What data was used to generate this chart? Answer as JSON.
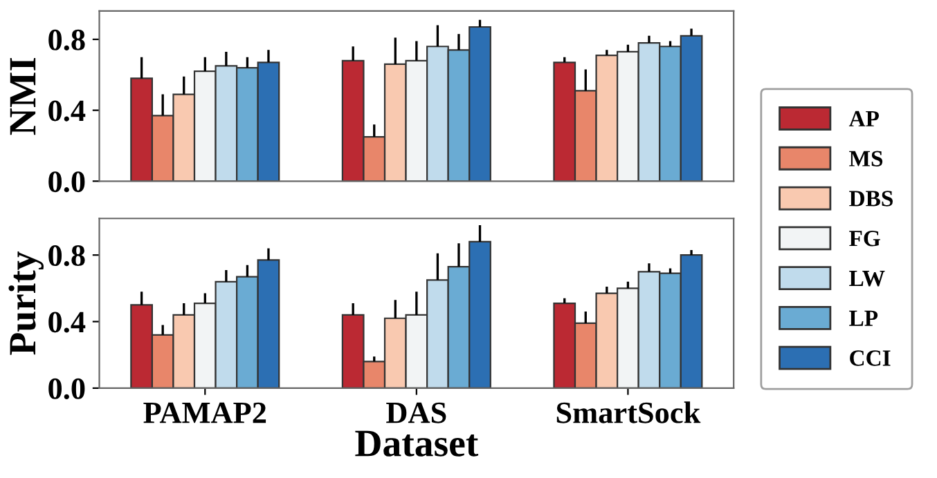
{
  "chart_data": [
    {
      "type": "bar",
      "ylabel": "NMI",
      "categories": [
        null,
        null,
        null
      ],
      "ylim": [
        0,
        0.96
      ],
      "yticks": [
        {
          "value": 0,
          "label": "0.0"
        },
        {
          "value": 0.4,
          "label": "0.4"
        },
        {
          "value": 0.8,
          "label": "0.8"
        }
      ],
      "tick_labels": "y",
      "legend": "right",
      "grid": false,
      "series": [
        {
          "name": "AP",
          "color": "#bb2933",
          "values": [
            0.58,
            0.68,
            0.67
          ],
          "errors": [
            [
              0.58,
              0.7
            ],
            [
              0.68,
              0.76
            ],
            [
              0.67,
              0.7
            ]
          ]
        },
        {
          "name": "MS",
          "color": "#e8866a",
          "values": [
            0.37,
            0.25,
            0.51
          ],
          "errors": [
            [
              0.37,
              0.49
            ],
            [
              0.25,
              0.32
            ],
            [
              0.51,
              0.63
            ]
          ]
        },
        {
          "name": "DBS",
          "color": "#f9c9b0",
          "values": [
            0.49,
            0.66,
            0.71
          ],
          "errors": [
            [
              0.49,
              0.59
            ],
            [
              0.66,
              0.81
            ],
            [
              0.71,
              0.74
            ]
          ]
        },
        {
          "name": "FG",
          "color": "#f2f4f5",
          "values": [
            0.62,
            0.68,
            0.73
          ],
          "errors": [
            [
              0.62,
              0.7
            ],
            [
              0.68,
              0.79
            ],
            [
              0.73,
              0.77
            ]
          ]
        },
        {
          "name": "LW",
          "color": "#c0dbec",
          "values": [
            0.65,
            0.76,
            0.78
          ],
          "errors": [
            [
              0.65,
              0.73
            ],
            [
              0.76,
              0.88
            ],
            [
              0.78,
              0.82
            ]
          ]
        },
        {
          "name": "LP",
          "color": "#6aabd3",
          "values": [
            0.64,
            0.74,
            0.76
          ],
          "errors": [
            [
              0.64,
              0.7
            ],
            [
              0.74,
              0.83
            ],
            [
              0.76,
              0.79
            ]
          ]
        },
        {
          "name": "CCI",
          "color": "#2c6fb3",
          "values": [
            0.67,
            0.87,
            0.82
          ],
          "errors": [
            [
              0.67,
              0.74
            ],
            [
              0.87,
              0.91
            ],
            [
              0.82,
              0.86
            ]
          ]
        }
      ]
    },
    {
      "type": "bar",
      "ylabel": "Purity",
      "xlabel": "Dataset",
      "categories": [
        "PAMAP2",
        "DAS",
        "SmartSock"
      ],
      "ylim": [
        0,
        1.02
      ],
      "yticks": [
        {
          "value": 0,
          "label": "0.0"
        },
        {
          "value": 0.4,
          "label": "0.4"
        },
        {
          "value": 0.8,
          "label": "0.8"
        }
      ],
      "grid": false,
      "series": [
        {
          "color": "#bb2933",
          "values": [
            0.5,
            0.44,
            0.51
          ],
          "errors": [
            [
              0.5,
              0.58
            ],
            [
              0.44,
              0.51
            ],
            [
              0.51,
              0.54
            ]
          ]
        },
        {
          "color": "#e8866a",
          "values": [
            0.32,
            0.16,
            0.39
          ],
          "errors": [
            [
              0.32,
              0.38
            ],
            [
              0.16,
              0.19
            ],
            [
              0.39,
              0.46
            ]
          ]
        },
        {
          "color": "#f9c9b0",
          "values": [
            0.44,
            0.42,
            0.57
          ],
          "errors": [
            [
              0.44,
              0.51
            ],
            [
              0.42,
              0.53
            ],
            [
              0.57,
              0.61
            ]
          ]
        },
        {
          "color": "#f2f4f5",
          "values": [
            0.51,
            0.44,
            0.6
          ],
          "errors": [
            [
              0.51,
              0.57
            ],
            [
              0.44,
              0.58
            ],
            [
              0.6,
              0.64
            ]
          ]
        },
        {
          "color": "#c0dbec",
          "values": [
            0.64,
            0.65,
            0.7
          ],
          "errors": [
            [
              0.64,
              0.71
            ],
            [
              0.65,
              0.81
            ],
            [
              0.7,
              0.75
            ]
          ]
        },
        {
          "color": "#6aabd3",
          "values": [
            0.67,
            0.73,
            0.69
          ],
          "errors": [
            [
              0.67,
              0.74
            ],
            [
              0.73,
              0.87
            ],
            [
              0.69,
              0.72
            ]
          ]
        },
        {
          "color": "#2c6fb3",
          "values": [
            0.77,
            0.88,
            0.8
          ],
          "errors": [
            [
              0.77,
              0.84
            ],
            [
              0.88,
              0.98
            ],
            [
              0.8,
              0.83
            ]
          ]
        }
      ]
    }
  ]
}
